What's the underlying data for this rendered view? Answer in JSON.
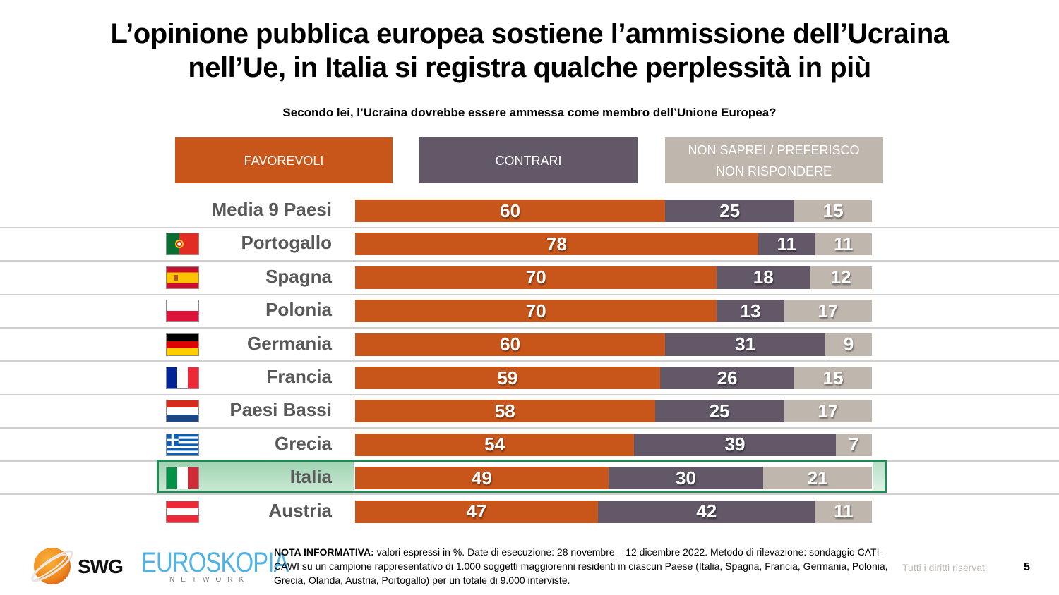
{
  "header": {
    "title_line1": "L’opinione pubblica europea sostiene l’ammissione dell’Ucraina",
    "title_line2": "nell’Ue, in Italia si registra qualche perplessità in più",
    "question": "Secondo lei, l’Ucraina dovrebbe essere ammessa come membro dell’Unione Europea?"
  },
  "legend": {
    "favorevoli": "FAVOREVOLI",
    "contrari": "CONTRARI",
    "non_saprei_line1": "NON SAPREI / PREFERISCO",
    "non_saprei_line2": "NON RISPONDERE"
  },
  "colors": {
    "favorevoli": "#c8561a",
    "contrari": "#625868",
    "non_saprei": "#bfb6ae",
    "highlight": "#1f8a55"
  },
  "chart_data": {
    "type": "bar",
    "orientation": "horizontal",
    "stacked": true,
    "title": "Secondo lei, l’Ucraina dovrebbe essere ammessa come membro dell’Unione Europea?",
    "unit": "%",
    "xlim": [
      0,
      100
    ],
    "grid": false,
    "legend_position": "top",
    "highlighted_category": "Italia",
    "categories": [
      "Media 9 Paesi",
      "Portogallo",
      "Spagna",
      "Polonia",
      "Germania",
      "Francia",
      "Paesi Bassi",
      "Grecia",
      "Italia",
      "Austria"
    ],
    "flags": [
      null,
      "portugal-flag",
      "spain-flag",
      "poland-flag",
      "germany-flag",
      "france-flag",
      "netherlands-flag",
      "greece-flag",
      "italy-flag",
      "austria-flag"
    ],
    "series": [
      {
        "name": "FAVOREVOLI",
        "values": [
          60,
          78,
          70,
          70,
          60,
          59,
          58,
          54,
          49,
          47
        ]
      },
      {
        "name": "CONTRARI",
        "values": [
          25,
          11,
          18,
          13,
          31,
          26,
          25,
          39,
          30,
          42
        ]
      },
      {
        "name": "NON SAPREI / PREFERISCO NON RISPONDERE",
        "values": [
          15,
          11,
          12,
          17,
          9,
          15,
          17,
          7,
          21,
          11
        ]
      }
    ]
  },
  "footer": {
    "note_label": "NOTA INFORMATIVA:",
    "note_text": " valori espressi in %. Date di esecuzione: 28 novembre – 12 dicembre 2022. Metodo di rilevazione: sondaggio CATI-CAWI su un campione rappresentativo di 1.000 soggetti maggiorenni residenti in ciascun Paese (Italia, Spagna, Francia, Germania, Polonia, Grecia, Olanda, Austria, Portogallo) per un totale di 9.000 interviste.",
    "rights": "Tutti i diritti riservati",
    "page_number": "5",
    "logo_swg": "SWG",
    "logo_euroskopia": "EUROSKOPIA",
    "logo_network": "NETWORK"
  }
}
